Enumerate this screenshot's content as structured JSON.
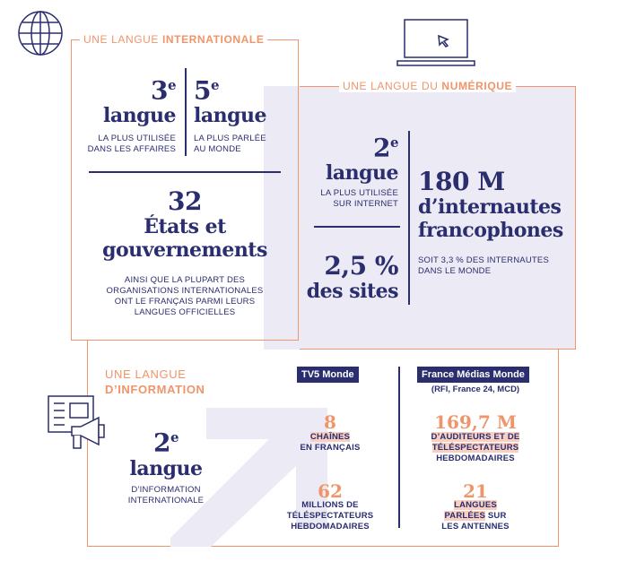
{
  "international": {
    "title_prefix": "UNE LANGUE ",
    "title_bold": "INTERNATIONALE",
    "stat1": {
      "num": "3",
      "sup": "e",
      "word": "langue",
      "caption1": "LA PLUS UTILISÉE",
      "caption2": "DANS LES AFFAIRES"
    },
    "stat2": {
      "num": "5",
      "sup": "e",
      "word": "langue",
      "caption1": "LA PLUS PARLÉE",
      "caption2": "AU MONDE"
    },
    "states": {
      "num": "32",
      "line1": "États et",
      "line2": "gouvernements",
      "caption": [
        "AINSI QUE LA PLUPART DES",
        "ORGANISATIONS INTERNATIONALES",
        "ONT LE FRANÇAIS PARMI LEURS",
        "LANGUES OFFICIELLES"
      ]
    }
  },
  "numerique": {
    "title_prefix": "UNE LANGUE DU ",
    "title_bold": "NUMÉRIQUE",
    "stat1": {
      "num": "2",
      "sup": "e",
      "word": "langue",
      "caption1": "LA PLUS UTILISÉE",
      "caption2": "SUR INTERNET"
    },
    "stat2": {
      "num": "2,5 %",
      "word": "des sites"
    },
    "stat3": {
      "num": "180 M",
      "line1": "d’internautes",
      "line2": "francophones",
      "caption1": "SOIT 3,3 % DES INTERNAUTES",
      "caption2": "DANS LE MONDE"
    }
  },
  "information": {
    "title_line1": "UNE LANGUE",
    "title_line2": "D’INFORMATION",
    "stat": {
      "num": "2",
      "sup": "e",
      "word": "langue",
      "caption1": "D’INFORMATION",
      "caption2": "INTERNATIONALE"
    },
    "tv5": {
      "tag": "TV5 Monde",
      "chaines_num": "8",
      "chaines_hl": "CHAÎNES",
      "chaines_rest": "EN FRANÇAIS",
      "tele_num": "62",
      "tele_lines": [
        "MILLIONS DE",
        "TÉLÉSPECTATEURS",
        "HEBDOMADAIRES"
      ]
    },
    "fmm": {
      "tag": "France Médias Monde",
      "sub": "(RFI, France 24, MCD)",
      "aud_num": "169,7 M",
      "aud_hl1": "D’AUDITEURS ET DE",
      "aud_hl2": "TÉLÉSPECTATEURS",
      "aud_rest": "HEBDOMADAIRES",
      "lang_num": "21",
      "lang_hl1": "LANGUES",
      "lang_hl2": "PARLÉES",
      "lang_rest2": " SUR",
      "lang_rest3": "LES ANTENNES"
    }
  },
  "colors": {
    "navy": "#2a2d6e",
    "orange": "#f0956a",
    "lavender": "#eceaf4",
    "highlight": "#f8cfc0"
  },
  "icons": [
    "globe-icon",
    "laptop-cursor-icon",
    "megaphone-document-icon",
    "diagonal-arrow-graphic"
  ]
}
